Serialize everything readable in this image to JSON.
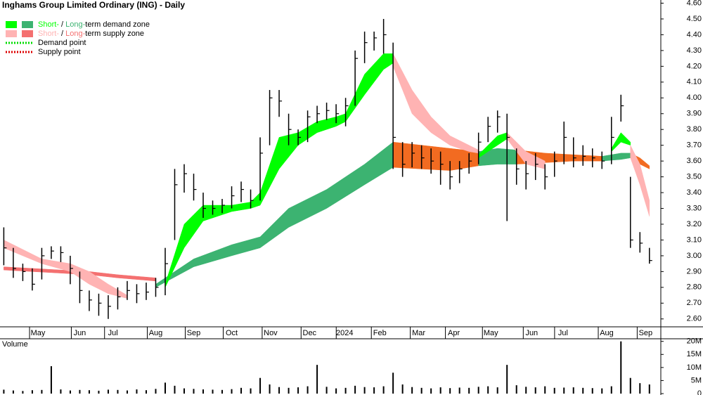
{
  "chart_data": {
    "type": "ohlc",
    "title": "Inghams Group Limited Ordinary (ING) - Daily",
    "legend": [
      {
        "short": "Short-",
        "sep": " / ",
        "long": "Long-",
        "text": "term demand zone",
        "colors": [
          "#00ff00",
          "#3cb371"
        ]
      },
      {
        "short": "Short-",
        "sep": " / ",
        "long": "Long-",
        "text": "term supply zone",
        "colors": [
          "#ffb3b3",
          "#f47070"
        ]
      },
      {
        "text": "Demand point",
        "color": "#00dd00"
      },
      {
        "text": "Supply point",
        "color": "#dd0000"
      }
    ],
    "x": [
      0,
      1,
      2,
      3,
      4,
      5,
      6,
      7,
      8,
      9,
      10,
      11,
      12,
      13,
      14,
      15,
      16,
      17,
      18,
      19,
      20,
      21,
      22,
      23,
      24,
      25,
      26,
      27,
      28,
      29,
      30,
      31,
      32,
      33,
      34,
      35,
      36,
      37,
      38,
      39,
      40,
      41,
      42,
      43,
      44,
      45,
      46,
      47,
      48,
      49,
      50,
      51,
      52,
      53,
      54,
      55,
      56,
      57,
      58,
      59,
      60,
      61,
      62,
      63,
      64,
      65,
      66,
      67,
      68
    ],
    "high": [
      3.18,
      3.05,
      2.95,
      2.92,
      3.05,
      3.06,
      3.06,
      3.0,
      2.9,
      2.78,
      2.76,
      2.75,
      2.8,
      2.84,
      2.82,
      2.83,
      2.86,
      3.05,
      3.55,
      3.58,
      3.52,
      3.4,
      3.35,
      3.36,
      3.44,
      3.47,
      3.42,
      3.75,
      4.05,
      4.05,
      3.9,
      3.8,
      3.92,
      3.95,
      3.97,
      3.96,
      4.0,
      4.3,
      4.42,
      4.42,
      4.5,
      4.35,
      3.72,
      3.72,
      3.7,
      3.68,
      3.66,
      3.6,
      3.6,
      3.65,
      3.78,
      3.88,
      3.92,
      3.9,
      3.68,
      3.6,
      3.65,
      3.58,
      3.66,
      3.85,
      3.75,
      3.7,
      3.68,
      3.66,
      3.88,
      4.02,
      3.5,
      3.15,
      3.05
    ],
    "low": [
      2.94,
      2.86,
      2.84,
      2.78,
      2.85,
      2.98,
      2.96,
      2.82,
      2.7,
      2.65,
      2.62,
      2.6,
      2.66,
      2.72,
      2.7,
      2.72,
      2.74,
      2.75,
      3.1,
      3.4,
      3.35,
      3.24,
      3.26,
      3.27,
      3.3,
      3.34,
      3.3,
      3.35,
      3.7,
      3.88,
      3.7,
      3.7,
      3.72,
      3.84,
      3.86,
      3.84,
      3.82,
      3.95,
      4.22,
      4.3,
      4.28,
      3.55,
      3.5,
      3.56,
      3.55,
      3.52,
      3.45,
      3.42,
      3.46,
      3.52,
      3.58,
      3.72,
      3.78,
      3.22,
      3.45,
      3.42,
      3.48,
      3.42,
      3.5,
      3.58,
      3.56,
      3.57,
      3.56,
      3.55,
      3.58,
      3.85,
      3.05,
      3.02,
      2.95
    ],
    "close": [
      3.05,
      2.92,
      2.9,
      2.82,
      3.0,
      3.03,
      3.02,
      2.92,
      2.78,
      2.72,
      2.7,
      2.68,
      2.74,
      2.78,
      2.76,
      2.77,
      2.8,
      2.95,
      3.45,
      3.52,
      3.42,
      3.3,
      3.3,
      3.32,
      3.38,
      3.42,
      3.35,
      3.65,
      4.0,
      3.98,
      3.8,
      3.75,
      3.88,
      3.9,
      3.92,
      3.9,
      3.95,
      4.25,
      4.35,
      4.38,
      4.4,
      3.75,
      3.58,
      3.65,
      3.62,
      3.6,
      3.58,
      3.5,
      3.55,
      3.6,
      3.72,
      3.82,
      3.88,
      3.75,
      3.55,
      3.52,
      3.58,
      3.5,
      3.6,
      3.75,
      3.62,
      3.63,
      3.62,
      3.6,
      3.75,
      3.95,
      3.1,
      3.08,
      2.97
    ],
    "bar_color": "#000000",
    "zones": [
      {
        "color": "#f47070",
        "x": [
          0,
          3,
          6,
          9,
          12,
          16
        ],
        "lower": [
          2.91,
          2.9,
          2.89,
          2.88,
          2.86,
          2.84
        ],
        "upper": [
          2.93,
          2.92,
          2.91,
          2.9,
          2.88,
          2.86
        ]
      },
      {
        "color": "#ffb3b3",
        "x": [
          0,
          4,
          7,
          9,
          11,
          13
        ],
        "lower": [
          3.05,
          2.95,
          2.9,
          2.82,
          2.76,
          2.73
        ],
        "upper": [
          3.1,
          2.98,
          2.95,
          2.9,
          2.82,
          2.75
        ]
      },
      {
        "color": "#3cb371",
        "x": [
          16,
          20,
          24,
          27,
          30,
          34,
          38,
          41
        ],
        "lower": [
          2.8,
          2.93,
          3.0,
          3.05,
          3.18,
          3.3,
          3.45,
          3.56
        ],
        "upper": [
          2.82,
          2.98,
          3.07,
          3.12,
          3.3,
          3.42,
          3.58,
          3.72
        ]
      },
      {
        "color": "#f26b21",
        "x": [
          41,
          44,
          47,
          50
        ],
        "lower": [
          3.56,
          3.55,
          3.54,
          3.57
        ],
        "upper": [
          3.72,
          3.7,
          3.68,
          3.66
        ]
      },
      {
        "color": "#3cb371",
        "x": [
          50,
          52,
          54
        ],
        "lower": [
          3.57,
          3.58,
          3.58
        ],
        "upper": [
          3.66,
          3.68,
          3.67
        ]
      },
      {
        "color": "#f26b21",
        "x": [
          54,
          57,
          60,
          63
        ],
        "lower": [
          3.58,
          3.59,
          3.6,
          3.6
        ],
        "upper": [
          3.67,
          3.65,
          3.64,
          3.63
        ]
      },
      {
        "color": "#3cb371",
        "x": [
          63,
          65,
          66
        ],
        "lower": [
          3.6,
          3.61,
          3.62
        ],
        "upper": [
          3.63,
          3.65,
          3.65
        ]
      },
      {
        "color": "#f26b21",
        "x": [
          66,
          67,
          68
        ],
        "lower": [
          3.62,
          3.58,
          3.55
        ],
        "upper": [
          3.65,
          3.62,
          3.57
        ]
      },
      {
        "color": "#00ff00",
        "x": [
          17,
          19,
          21,
          24,
          26,
          27,
          29,
          31,
          33,
          35,
          36,
          38,
          40,
          41
        ],
        "lower": [
          2.8,
          3.05,
          3.22,
          3.28,
          3.3,
          3.32,
          3.55,
          3.7,
          3.78,
          3.82,
          3.85,
          4.02,
          4.18,
          4.22
        ],
        "upper": [
          2.82,
          3.2,
          3.32,
          3.32,
          3.34,
          3.4,
          3.75,
          3.78,
          3.85,
          3.88,
          3.9,
          4.15,
          4.28,
          4.28
        ]
      },
      {
        "color": "#ffb3b3",
        "x": [
          41,
          43,
          45,
          47,
          49,
          50
        ],
        "lower": [
          4.2,
          3.9,
          3.78,
          3.7,
          3.66,
          3.65
        ],
        "upper": [
          4.28,
          4.05,
          3.88,
          3.76,
          3.7,
          3.67
        ]
      },
      {
        "color": "#00ff00",
        "x": [
          50,
          51,
          52,
          53
        ],
        "lower": [
          3.62,
          3.66,
          3.7,
          3.74
        ],
        "upper": [
          3.64,
          3.7,
          3.76,
          3.78
        ]
      },
      {
        "color": "#ffb3b3",
        "x": [
          53,
          54,
          55,
          57
        ],
        "lower": [
          3.74,
          3.66,
          3.58,
          3.55
        ],
        "upper": [
          3.78,
          3.72,
          3.66,
          3.6
        ]
      },
      {
        "color": "#00ff00",
        "x": [
          64,
          65,
          66
        ],
        "lower": [
          3.66,
          3.72,
          3.7
        ],
        "upper": [
          3.68,
          3.78,
          3.72
        ]
      },
      {
        "color": "#ffb3b3",
        "x": [
          66,
          67,
          68
        ],
        "lower": [
          3.62,
          3.45,
          3.25
        ],
        "upper": [
          3.7,
          3.58,
          3.35
        ]
      }
    ],
    "xlim": [
      -0.4,
      69.2
    ],
    "ylim": [
      2.55,
      4.62
    ],
    "yticks": [
      {
        "value": 2.6,
        "label": "2.60"
      },
      {
        "value": 2.7,
        "label": "2.70"
      },
      {
        "value": 2.8,
        "label": "2.80"
      },
      {
        "value": 2.9,
        "label": "2.90"
      },
      {
        "value": 3.0,
        "label": "3.00"
      },
      {
        "value": 3.1,
        "label": "3.10"
      },
      {
        "value": 3.2,
        "label": "3.20"
      },
      {
        "value": 3.3,
        "label": "3.30"
      },
      {
        "value": 3.4,
        "label": "3.40"
      },
      {
        "value": 3.5,
        "label": "3.50"
      },
      {
        "value": 3.6,
        "label": "3.60"
      },
      {
        "value": 3.7,
        "label": "3.70"
      },
      {
        "value": 3.8,
        "label": "3.80"
      },
      {
        "value": 3.9,
        "label": "3.90"
      },
      {
        "value": 4.0,
        "label": "4.00"
      },
      {
        "value": 4.1,
        "label": "4.10"
      },
      {
        "value": 4.2,
        "label": "4.20"
      },
      {
        "value": 4.3,
        "label": "4.30"
      },
      {
        "value": 4.4,
        "label": "4.40"
      },
      {
        "value": 4.5,
        "label": "4.50"
      },
      {
        "value": 4.6,
        "label": "4.60"
      }
    ],
    "xticks": [
      {
        "value": 3.6,
        "label": "May"
      },
      {
        "value": 8,
        "label": "Jun"
      },
      {
        "value": 11.5,
        "label": "Jul"
      },
      {
        "value": 16,
        "label": "Aug"
      },
      {
        "value": 20,
        "label": "Sep"
      },
      {
        "value": 24,
        "label": "Oct"
      },
      {
        "value": 28.1,
        "label": "Nov"
      },
      {
        "value": 32.2,
        "label": "Dec"
      },
      {
        "value": 35.9,
        "label": "2024"
      },
      {
        "value": 39.6,
        "label": "Feb"
      },
      {
        "value": 43.7,
        "label": "Mar"
      },
      {
        "value": 47.4,
        "label": "Apr"
      },
      {
        "value": 51.3,
        "label": "May"
      },
      {
        "value": 55.6,
        "label": "Jun"
      },
      {
        "value": 58.9,
        "label": "Jul"
      },
      {
        "value": 63.5,
        "label": "Aug"
      },
      {
        "value": 67.6,
        "label": "Sep"
      }
    ],
    "volume": {
      "label": "Volume",
      "label_color": "#4b0082",
      "color": "#000000",
      "values": [
        1500000,
        1200000,
        1000000,
        1300000,
        1400000,
        10500000,
        1600000,
        1200000,
        1400000,
        1300000,
        1100000,
        1500000,
        1400000,
        1200000,
        1600000,
        1300000,
        1800000,
        4200000,
        3000000,
        2000000,
        1800000,
        1600000,
        1500000,
        1400000,
        1700000,
        2200000,
        2000000,
        6000000,
        3500000,
        2500000,
        2200000,
        2400000,
        2800000,
        11000000,
        2600000,
        2000000,
        2200000,
        3000000,
        2500000,
        2400000,
        2800000,
        8000000,
        3500000,
        2500000,
        2200000,
        2000000,
        2400000,
        2100000,
        2300000,
        2200000,
        2600000,
        2800000,
        2400000,
        11000000,
        3200000,
        2600000,
        2400000,
        2800000,
        2200000,
        2300000,
        2400000,
        2200000,
        2100000,
        2000000,
        2800000,
        20000000,
        6000000,
        4000000,
        3500000
      ],
      "ylim": [
        0,
        21000000
      ],
      "yticks": [
        0,
        {
          "value": 5000000,
          "label": "5M"
        },
        {
          "value": 10000000,
          "label": "10M"
        },
        {
          "value": 15000000,
          "label": "15M"
        },
        {
          "value": 20000000,
          "label": "20M"
        }
      ]
    }
  }
}
